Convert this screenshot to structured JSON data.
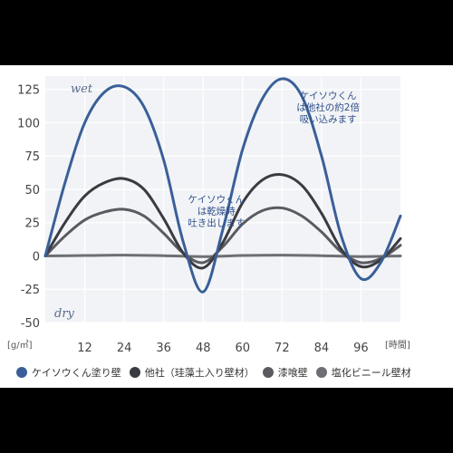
{
  "chart_data": {
    "type": "line",
    "ylabel": "[g/㎡]",
    "xlabel": "[時間]",
    "xticks": [
      12,
      24,
      36,
      48,
      60,
      72,
      84,
      96
    ],
    "yticks": [
      125,
      100,
      75,
      50,
      25,
      0,
      -25,
      -50
    ],
    "xlim": [
      0,
      108
    ],
    "ylim": [
      -50,
      135
    ],
    "grid": true,
    "zone_labels": {
      "wet": "wet",
      "dry": "dry"
    },
    "annotations": [
      {
        "lines": [
          "ケイソウくん",
          "は乾燥時",
          "吐き出します"
        ]
      },
      {
        "lines": [
          "ケイソウくん",
          "は他社の約2倍",
          "吸い込みます"
        ]
      }
    ],
    "series": [
      {
        "name": "ケイソウくん塗り壁",
        "color": "#3a5f98",
        "x": [
          0,
          6,
          12,
          18,
          24,
          30,
          36,
          42,
          48,
          54,
          60,
          66,
          72,
          78,
          84,
          90,
          96,
          102,
          108
        ],
        "y": [
          0,
          55,
          100,
          123,
          127,
          112,
          72,
          10,
          -27,
          20,
          80,
          118,
          133,
          120,
          75,
          15,
          -17,
          -5,
          30
        ]
      },
      {
        "name": "他社（珪藻土入り壁材）",
        "color": "#3a3b40",
        "x": [
          0,
          6,
          12,
          18,
          24,
          30,
          36,
          42,
          48,
          54,
          60,
          66,
          72,
          78,
          84,
          90,
          96,
          102,
          108
        ],
        "y": [
          0,
          25,
          45,
          55,
          58,
          50,
          28,
          2,
          -9,
          10,
          40,
          57,
          61,
          53,
          32,
          5,
          -8,
          -3,
          13
        ]
      },
      {
        "name": "漆喰壁",
        "color": "#5a5b60",
        "x": [
          0,
          6,
          12,
          18,
          24,
          30,
          36,
          42,
          48,
          54,
          60,
          66,
          72,
          78,
          84,
          90,
          96,
          102,
          108
        ],
        "y": [
          0,
          15,
          27,
          33,
          35,
          30,
          17,
          2,
          -5,
          7,
          24,
          34,
          36,
          30,
          18,
          3,
          -5,
          -2,
          8
        ]
      },
      {
        "name": "塩化ビニール壁材",
        "color": "#6e6f74",
        "x": [
          0,
          12,
          24,
          36,
          48,
          60,
          72,
          84,
          96,
          108
        ],
        "y": [
          0,
          0.3,
          0.6,
          0.2,
          -0.5,
          0.3,
          0.6,
          0.2,
          -0.5,
          0
        ]
      }
    ]
  }
}
